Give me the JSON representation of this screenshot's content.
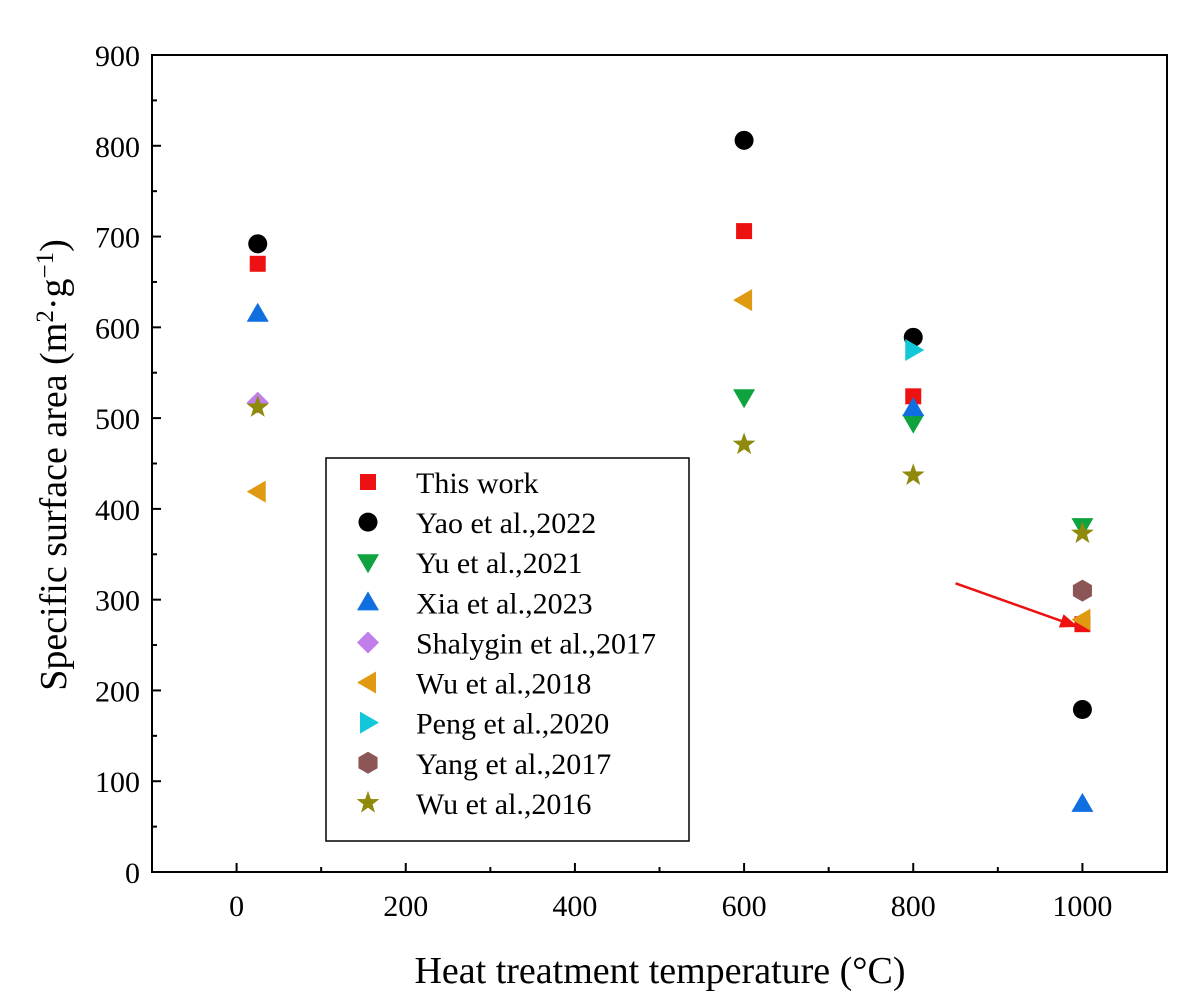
{
  "chart_data": {
    "type": "scatter",
    "title": "",
    "xlabel": "Heat treatment temperature (°C)",
    "ylabel": {
      "text": "Specific surface area (m",
      "sup1": "2",
      "mid": "·g",
      "sup2": "−1",
      "end": ")"
    },
    "xlim": [
      -100,
      1100
    ],
    "ylim": [
      0,
      900
    ],
    "xticks": [
      0,
      200,
      400,
      600,
      800,
      1000
    ],
    "yticks": [
      0,
      100,
      200,
      300,
      400,
      500,
      600,
      700,
      800,
      900
    ],
    "grid": false,
    "legend_position": "bottom-center",
    "series": [
      {
        "name": "This work",
        "marker": "square",
        "color": "#ee1111",
        "points": [
          [
            25,
            670
          ],
          [
            600,
            706
          ],
          [
            800,
            524
          ],
          [
            1000,
            273
          ]
        ]
      },
      {
        "name": "Yao et al.,2022",
        "marker": "circle",
        "color": "#000000",
        "points": [
          [
            25,
            692
          ],
          [
            600,
            806
          ],
          [
            800,
            589
          ],
          [
            1000,
            179
          ]
        ]
      },
      {
        "name": "Yu et al.,2021",
        "marker": "triangle-down",
        "color": "#0fa33f",
        "points": [
          [
            600,
            523
          ],
          [
            800,
            495
          ],
          [
            1000,
            381
          ]
        ]
      },
      {
        "name": "Xia et al.,2023",
        "marker": "triangle-up",
        "color": "#0f6fe0",
        "points": [
          [
            25,
            615
          ],
          [
            800,
            511
          ],
          [
            1000,
            75
          ]
        ]
      },
      {
        "name": "Shalygin et al.,2017",
        "marker": "diamond",
        "color": "#c27ee8",
        "points": [
          [
            25,
            517
          ]
        ]
      },
      {
        "name": "Wu et al.,2018",
        "marker": "triangle-left",
        "color": "#e09a12",
        "points": [
          [
            25,
            419
          ],
          [
            600,
            630
          ],
          [
            1000,
            278
          ]
        ]
      },
      {
        "name": "Peng et al.,2020",
        "marker": "triangle-right",
        "color": "#12c8d8",
        "points": [
          [
            800,
            575
          ]
        ]
      },
      {
        "name": "Yang et al.,2017",
        "marker": "hexagon",
        "color": "#8c5656",
        "points": [
          [
            1000,
            310
          ]
        ]
      },
      {
        "name": "Wu et al.,2016",
        "marker": "star",
        "color": "#8f8a0c",
        "points": [
          [
            25,
            512
          ],
          [
            600,
            471
          ],
          [
            800,
            437
          ],
          [
            1000,
            373
          ]
        ]
      }
    ],
    "annotations": [
      {
        "type": "arrow",
        "color": "#ee1111",
        "from": [
          850,
          318
        ],
        "to": [
          995,
          270
        ]
      }
    ]
  }
}
